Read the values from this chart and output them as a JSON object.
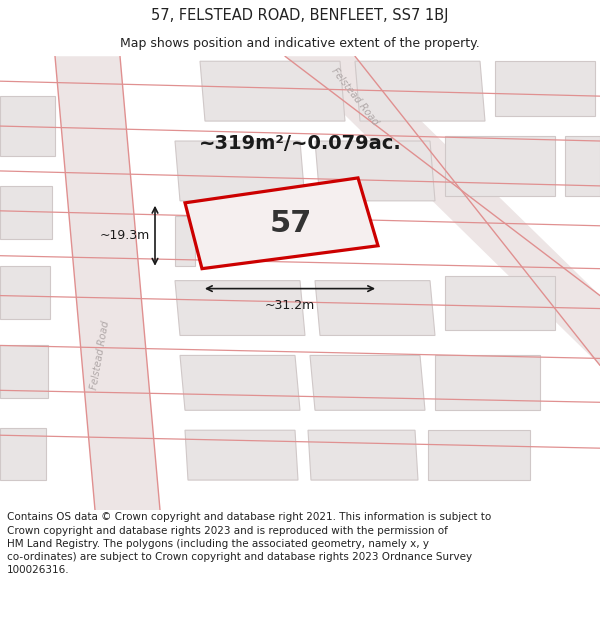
{
  "title": "57, FELSTEAD ROAD, BENFLEET, SS7 1BJ",
  "subtitle": "Map shows position and indicative extent of the property.",
  "footer": "Contains OS data © Crown copyright and database right 2021. This information is subject to\nCrown copyright and database rights 2023 and is reproduced with the permission of\nHM Land Registry. The polygons (including the associated geometry, namely x, y\nco-ordinates) are subject to Crown copyright and database rights 2023 Ordnance Survey\n100026316.",
  "area_label": "~319m²/~0.079ac.",
  "width_label": "~31.2m",
  "height_label": "~19.3m",
  "number_label": "57",
  "map_bg": "#f5efef",
  "building_fc": "#e8e4e4",
  "building_ec": "#d0c8c8",
  "road_band_fc": "#ede5e5",
  "road_line_color": "#e09090",
  "prop_edge": "#cc0000",
  "prop_fc": "#f5efef",
  "text_dark": "#222222",
  "road_label_color": "#aaaaaa",
  "title_fs": 10.5,
  "subtitle_fs": 9,
  "footer_fs": 7.5,
  "area_fs": 14,
  "dim_fs": 9,
  "num_fs": 22
}
